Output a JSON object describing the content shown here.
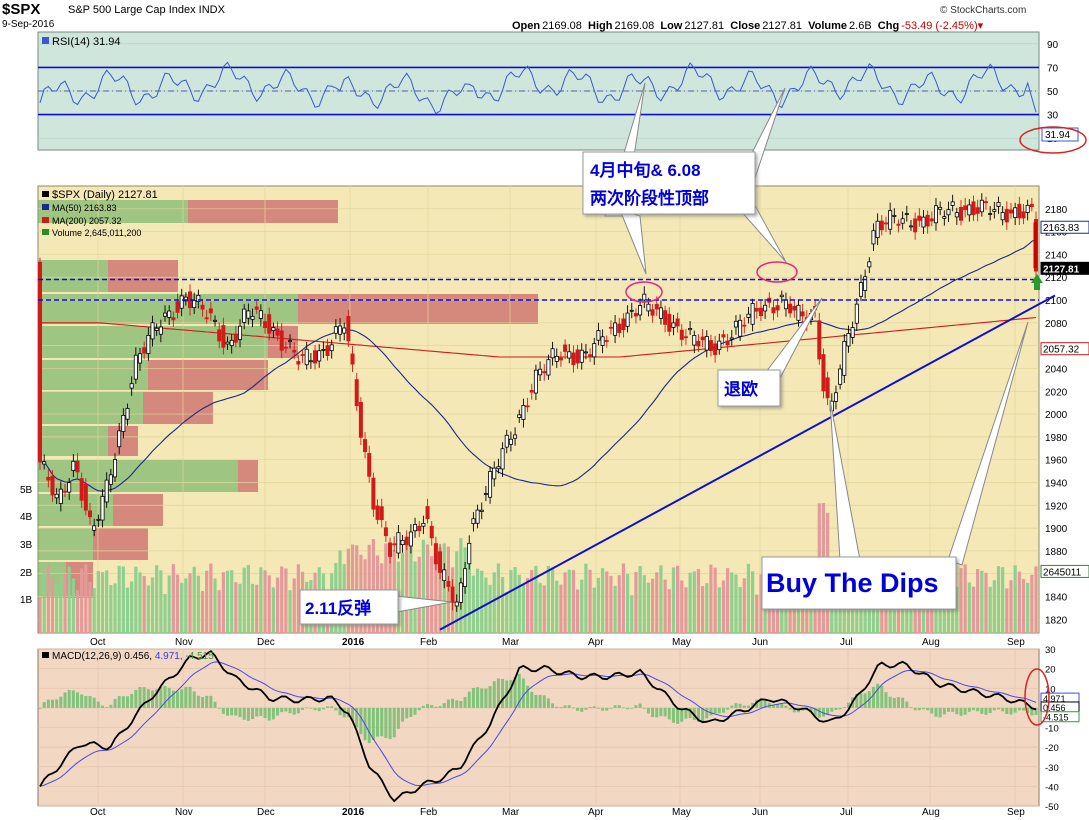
{
  "header": {
    "symbol": "$SPX",
    "description": "S&P 500 Large Cap Index INDX",
    "date": "9-Sep-2016",
    "open_label": "Open",
    "open": "2169.08",
    "high_label": "High",
    "high": "2169.08",
    "low_label": "Low",
    "low": "2127.81",
    "close_label": "Close",
    "close": "2127.81",
    "volume_label": "Volume",
    "volume": "2.6B",
    "chg_label": "Chg",
    "chg": "-53.49 (-2.45%)",
    "logo": "© StockCharts.com"
  },
  "colors": {
    "rsi_bg": "#cfe6dc",
    "price_bg": "#f3e8b6",
    "macd_bg": "#f2d7c3",
    "up_candle": "#000000",
    "down_candle": "#d11a1a",
    "ma50": "#1a2a8c",
    "ma200": "#d11a1a",
    "volume_up": "#8fcf8f",
    "volume_down": "#e59a9a",
    "annotation_blue": "#0000dd",
    "level_line": "#1010cc",
    "circle": "#e0287d",
    "red_circle": "#dd2222"
  },
  "chart_data": [
    {
      "type": "line",
      "title": "RSI(14) 31.94",
      "legend_label": "RSI(14)",
      "value": "31.94",
      "ylim": [
        0,
        100
      ],
      "y_ticks": [
        10,
        30,
        50,
        70,
        90
      ],
      "reference_lines": [
        30,
        50,
        70
      ],
      "current_label": "31.94"
    },
    {
      "type": "candlestick",
      "legend": [
        {
          "name": "$SPX (Daily) 2127.81",
          "color": "#000000"
        },
        {
          "name": "MA(50) 2163.83",
          "color": "#1a2a8c"
        },
        {
          "name": "MA(200) 2057.32",
          "color": "#d11a1a"
        },
        {
          "name": "Volume 2,645,011,200",
          "color": "#2d8a2d"
        }
      ],
      "ylim": [
        1808,
        2200
      ],
      "y_ticks": [
        1820,
        1840,
        1860,
        1880,
        1900,
        1920,
        1940,
        1960,
        1980,
        2000,
        2020,
        2040,
        2060,
        2080,
        2100,
        2120,
        2140,
        2160,
        2180
      ],
      "x_labels": [
        "Oct",
        "Nov",
        "Dec",
        "2016",
        "Feb",
        "Mar",
        "Apr",
        "May",
        "Jun",
        "Jul",
        "Aug",
        "Sep"
      ],
      "volume_ticks": [
        "5B",
        "4B",
        "3B",
        "2B",
        "1B"
      ],
      "price_flags": [
        {
          "label": "2163.83",
          "value": 2163.83
        },
        {
          "label": "2127.81",
          "value": 2127.81
        },
        {
          "label": "2057.32",
          "value": 2057.32
        },
        {
          "label": "2645011",
          "value": 1862
        }
      ],
      "levels": [
        2118,
        2100
      ],
      "annotations": {
        "tops": [
          "4月中旬& 6.08",
          "两次阶段性顶部"
        ],
        "brexit": "退欧",
        "buy_dips": "Buy The Dips",
        "rebound": "2.11反弹"
      }
    },
    {
      "type": "line",
      "title": "MACD(12,26,9) 0.456, 4.971, -4.515",
      "legend_prefix": "MACD(12,26,9)",
      "values": [
        {
          "label": "0.456",
          "color": "#000000"
        },
        {
          "label": "4.971",
          "color": "#3a3adb"
        },
        {
          "label": "-4.515",
          "color": "#3a9a3a"
        }
      ],
      "ylim": [
        -50,
        30
      ],
      "y_ticks": [
        30,
        20,
        10,
        0,
        -10,
        -20,
        -30,
        -40,
        -50
      ],
      "x_labels": [
        "Oct",
        "Nov",
        "Dec",
        "2016",
        "Feb",
        "Mar",
        "Apr",
        "May",
        "Jun",
        "Jul",
        "Aug",
        "Sep"
      ],
      "current_labels": [
        "4.971",
        "0.456",
        "-4.515"
      ]
    }
  ]
}
